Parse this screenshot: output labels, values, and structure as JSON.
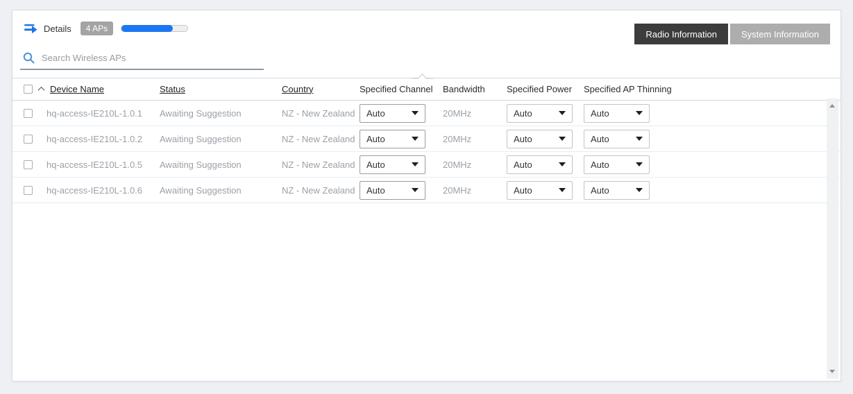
{
  "toolbar": {
    "details_label": "Details",
    "ap_count_badge": "4 APs",
    "progress_percent": 78,
    "radio_information_button": "Radio Information",
    "system_information_button": "System Information"
  },
  "search": {
    "placeholder": "Search Wireless APs"
  },
  "table": {
    "columns": {
      "device_name": "Device Name",
      "status": "Status",
      "country": "Country",
      "specified_channel": "Specified Channel",
      "bandwidth": "Bandwidth",
      "specified_power": "Specified Power",
      "specified_ap_thinning": "Specified AP Thinning"
    },
    "rows": [
      {
        "device_name": "hq-access-IE210L-1.0.1",
        "status": "Awaiting Suggestion",
        "country": "NZ - New Zealand",
        "specified_channel": "Auto",
        "bandwidth": "20MHz",
        "specified_power": "Auto",
        "specified_ap_thinning": "Auto"
      },
      {
        "device_name": "hq-access-IE210L-1.0.2",
        "status": "Awaiting Suggestion",
        "country": "NZ - New Zealand",
        "specified_channel": "Auto",
        "bandwidth": "20MHz",
        "specified_power": "Auto",
        "specified_ap_thinning": "Auto"
      },
      {
        "device_name": "hq-access-IE210L-1.0.5",
        "status": "Awaiting Suggestion",
        "country": "NZ - New Zealand",
        "specified_channel": "Auto",
        "bandwidth": "20MHz",
        "specified_power": "Auto",
        "specified_ap_thinning": "Auto"
      },
      {
        "device_name": "hq-access-IE210L-1.0.6",
        "status": "Awaiting Suggestion",
        "country": "NZ - New Zealand",
        "specified_channel": "Auto",
        "bandwidth": "20MHz",
        "specified_power": "Auto",
        "specified_ap_thinning": "Auto"
      }
    ]
  },
  "colors": {
    "accent_blue": "#1b76f2",
    "dark_button": "#3c3c3c",
    "gray_button": "#adadad",
    "page_background": "#eef0f4"
  }
}
